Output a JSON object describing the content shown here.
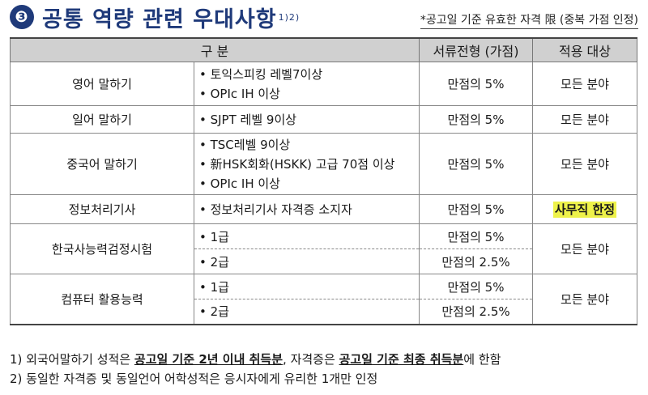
{
  "header": {
    "badge": "❸",
    "title": "공통 역량 관련 우대사항",
    "superscript": "1)2)",
    "note": "*공고일 기준 유효한 자격 限 (중복 가점 인정)"
  },
  "table": {
    "headers": [
      "구 분",
      "서류전형 (가점)",
      "적용 대상"
    ],
    "rows": [
      {
        "category": "영어 말하기",
        "conditions": [
          "• 토익스피킹 레벨7이상",
          "• OPIc IH 이상"
        ],
        "points": "만점의 5%",
        "target": "모든 분야"
      },
      {
        "category": "일어 말하기",
        "conditions": [
          "• SJPT 레벨 9이상"
        ],
        "points": "만점의 5%",
        "target": "모든 분야"
      },
      {
        "category": "중국어 말하기",
        "conditions": [
          "• TSC레벨 9이상",
          "• 新HSK회화(HSKK) 고급 70점 이상",
          "• OPIc IH 이상"
        ],
        "points": "만점의 5%",
        "target": "모든 분야"
      },
      {
        "category": "정보처리기사",
        "conditions": [
          "• 정보처리기사 자격증 소지자"
        ],
        "points": "만점의 5%",
        "target": "사무직 한정"
      },
      {
        "category": "한국사능력검정시험",
        "sub": [
          {
            "condition": "• 1급",
            "points": "만점의 5%"
          },
          {
            "condition": "• 2급",
            "points": "만점의 2.5%"
          }
        ],
        "target": "모든 분야"
      },
      {
        "category": "컴퓨터 활용능력",
        "sub": [
          {
            "condition": "• 1급",
            "points": "만점의 5%"
          },
          {
            "condition": "• 2급",
            "points": "만점의 2.5%"
          }
        ],
        "target": "모든 분야"
      }
    ]
  },
  "footnotes": {
    "fn1": {
      "prefix": "1) 외국어말하기 성적은 ",
      "bold1": "공고일 기준 2년 이내 취득분",
      "mid": ", 자격증은 ",
      "bold2": "공고일 기준 최종 취득분",
      "suffix": "에 한함"
    },
    "fn2": "2) 동일한 자격증 및 동일언어 어학성적은 응시자에게 유리한 1개만 인정"
  },
  "colors": {
    "title": "#1f3a7a",
    "header_bg": "#d0d0d0",
    "highlight": "#eef24a"
  }
}
